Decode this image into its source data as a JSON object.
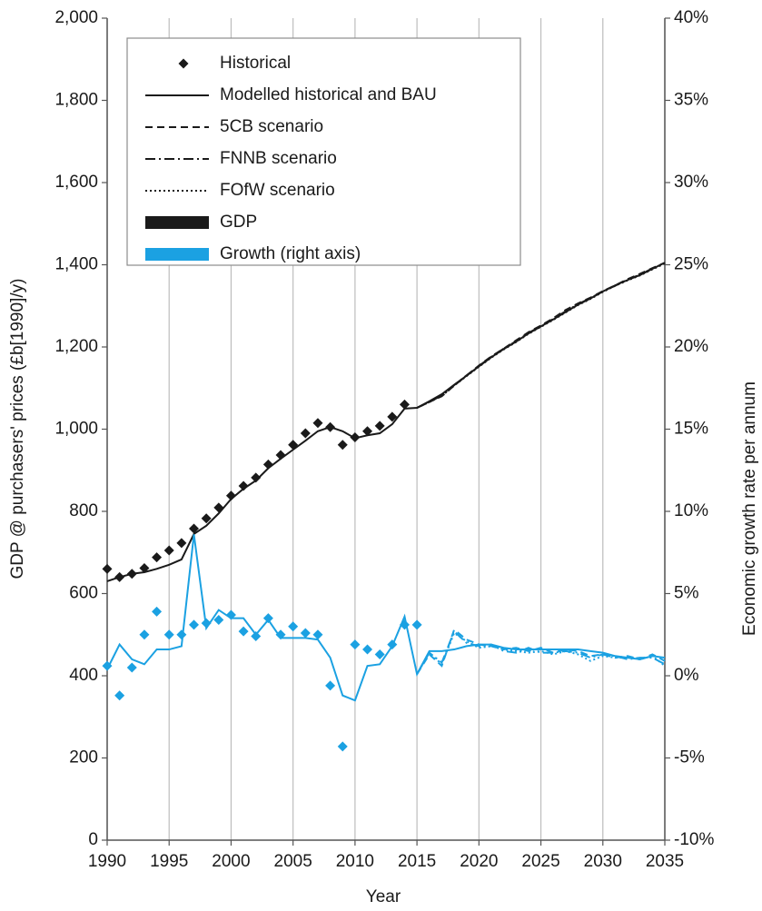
{
  "chart_data": {
    "type": "line",
    "y_label": "GDP @ purchasers' prices (£b[1990]/y)",
    "y2_label": "Economic growth rate per annum",
    "x_label": "Year",
    "x": [
      1990,
      1991,
      1992,
      1993,
      1994,
      1995,
      1996,
      1997,
      1998,
      1999,
      2000,
      2001,
      2002,
      2003,
      2004,
      2005,
      2006,
      2007,
      2008,
      2009,
      2010,
      2011,
      2012,
      2013,
      2014,
      2015,
      2016,
      2017,
      2018,
      2019,
      2020,
      2021,
      2022,
      2023,
      2024,
      2025,
      2026,
      2027,
      2028,
      2029,
      2030,
      2031,
      2032,
      2033,
      2034,
      2035
    ],
    "xlim": [
      1990,
      2035
    ],
    "xticks": [
      1990,
      1995,
      2000,
      2005,
      2010,
      2015,
      2020,
      2025,
      2030,
      2035
    ],
    "ylim": [
      0,
      2000
    ],
    "yticks": [
      0,
      200,
      400,
      600,
      800,
      {
        "value": 1000,
        "label": "1,000"
      },
      {
        "value": 1200,
        "label": "1,200"
      },
      {
        "value": 1400,
        "label": "1,400"
      },
      {
        "value": 1600,
        "label": "1,600"
      },
      {
        "value": 1800,
        "label": "1,800"
      },
      {
        "value": 2000,
        "label": "2,000"
      }
    ],
    "y2lim": [
      -10,
      40
    ],
    "y2ticks": [
      {
        "value": -10,
        "label": "-10%"
      },
      {
        "value": -5,
        "label": "-5%"
      },
      {
        "value": 0,
        "label": "0%"
      },
      {
        "value": 5,
        "label": "5%"
      },
      {
        "value": 10,
        "label": "10%"
      },
      {
        "value": 15,
        "label": "15%"
      },
      {
        "value": 20,
        "label": "20%"
      },
      {
        "value": 25,
        "label": "25%"
      },
      {
        "value": 30,
        "label": "30%"
      },
      {
        "value": 35,
        "label": "35%"
      },
      {
        "value": 40,
        "label": "40%"
      }
    ],
    "grid": "x",
    "legend": "upper left",
    "measures": [
      {
        "name": "GDP",
        "color": "#1a1a1a",
        "axis": "y"
      },
      {
        "name": "Growth (right axis)",
        "color": "#1ba1e2",
        "axis": "y2"
      }
    ],
    "series": [
      {
        "name": "Historical",
        "style": "diamond",
        "gdp": [
          660,
          640,
          648,
          662,
          688,
          705,
          723,
          758,
          783,
          809,
          838,
          862,
          882,
          914,
          937,
          962,
          990,
          1015,
          1005,
          962,
          980,
          995,
          1008,
          1030,
          1060,
          null,
          null,
          null,
          null,
          null,
          null,
          null,
          null,
          null,
          null,
          null,
          null,
          null,
          null,
          null,
          null,
          null,
          null,
          null,
          null,
          null
        ],
        "growth": [
          0.6,
          -1.2,
          0.5,
          2.5,
          3.9,
          2.5,
          2.5,
          3.1,
          3.2,
          3.4,
          3.7,
          2.7,
          2.4,
          3.5,
          2.5,
          3.0,
          2.6,
          2.5,
          -0.6,
          -4.3,
          1.9,
          1.6,
          1.3,
          1.9,
          3.1,
          3.1,
          null,
          null,
          null,
          null,
          null,
          null,
          null,
          null,
          null,
          null,
          null,
          null,
          null,
          null,
          null,
          null,
          null,
          null,
          null,
          null
        ]
      },
      {
        "name": "Modelled historical and BAU",
        "style": "solid",
        "gdp": [
          630,
          640,
          648,
          652,
          660,
          670,
          683,
          745,
          765,
          795,
          830,
          855,
          875,
          905,
          928,
          950,
          972,
          995,
          1005,
          995,
          978,
          985,
          990,
          1012,
          1050,
          1052,
          1068,
          1085,
          1108,
          1130,
          1153,
          1175,
          1195,
          1213,
          1233,
          1250,
          1267,
          1285,
          1303,
          1318,
          1335,
          1350,
          1363,
          1375,
          1390,
          1405
        ],
        "growth": [
          0.4,
          1.9,
          1.0,
          0.7,
          1.6,
          1.6,
          1.8,
          8.6,
          2.9,
          4.0,
          3.5,
          3.5,
          2.5,
          3.4,
          2.3,
          2.3,
          2.3,
          2.2,
          1.1,
          -1.2,
          -1.5,
          0.6,
          0.7,
          1.8,
          3.6,
          0.1,
          1.5,
          1.5,
          1.6,
          1.8,
          1.9,
          1.9,
          1.7,
          1.6,
          1.6,
          1.6,
          1.6,
          1.6,
          1.6,
          1.5,
          1.4,
          1.2,
          1.1,
          1.0,
          1.2,
          1.1
        ]
      },
      {
        "name": "5CB scenario",
        "style": "dashed",
        "gdp": [
          null,
          null,
          null,
          null,
          null,
          null,
          null,
          null,
          null,
          null,
          null,
          null,
          null,
          null,
          null,
          null,
          null,
          null,
          null,
          null,
          null,
          null,
          null,
          null,
          null,
          1052,
          1066,
          1080,
          1106,
          1130,
          1155,
          1177,
          1196,
          1216,
          1236,
          1252,
          1270,
          1290,
          1306,
          1320,
          1336,
          1350,
          1365,
          1378,
          1392,
          1405
        ],
        "growth": [
          null,
          null,
          null,
          null,
          null,
          null,
          null,
          null,
          null,
          null,
          null,
          null,
          null,
          null,
          null,
          null,
          null,
          null,
          null,
          null,
          null,
          null,
          null,
          null,
          null,
          0.1,
          1.3,
          0.6,
          2.8,
          2.2,
          1.9,
          1.8,
          1.6,
          1.7,
          1.5,
          1.7,
          1.4,
          1.6,
          1.5,
          1.2,
          1.3,
          1.1,
          1.2,
          1.0,
          1.3,
          0.9
        ]
      },
      {
        "name": "FNNB scenario",
        "style": "dashdot",
        "gdp": [
          null,
          null,
          null,
          null,
          null,
          null,
          null,
          null,
          null,
          null,
          null,
          null,
          null,
          null,
          null,
          null,
          null,
          null,
          null,
          null,
          null,
          null,
          null,
          null,
          null,
          1052,
          1066,
          1082,
          1107,
          1131,
          1154,
          1176,
          1196,
          1214,
          1234,
          1251,
          1268,
          1287,
          1304,
          1319,
          1335,
          1349,
          1364,
          1376,
          1391,
          1404
        ],
        "growth": [
          null,
          null,
          null,
          null,
          null,
          null,
          null,
          null,
          null,
          null,
          null,
          null,
          null,
          null,
          null,
          null,
          null,
          null,
          null,
          null,
          null,
          null,
          null,
          null,
          null,
          0.1,
          1.4,
          0.8,
          2.7,
          2.0,
          1.8,
          1.9,
          1.5,
          1.4,
          1.7,
          1.4,
          1.4,
          1.5,
          1.4,
          1.1,
          1.3,
          1.2,
          1.0,
          1.1,
          1.1,
          0.7
        ]
      },
      {
        "name": "FOfW scenario",
        "style": "dotted",
        "gdp": [
          null,
          null,
          null,
          null,
          null,
          null,
          null,
          null,
          null,
          null,
          null,
          null,
          null,
          null,
          null,
          null,
          null,
          null,
          null,
          null,
          null,
          null,
          null,
          null,
          null,
          1052,
          1066,
          1081,
          1106,
          1129,
          1152,
          1174,
          1194,
          1212,
          1232,
          1249,
          1266,
          1284,
          1302,
          1317,
          1334,
          1349,
          1362,
          1374,
          1389,
          1403
        ],
        "growth": [
          null,
          null,
          null,
          null,
          null,
          null,
          null,
          null,
          null,
          null,
          null,
          null,
          null,
          null,
          null,
          null,
          null,
          null,
          null,
          null,
          null,
          null,
          null,
          null,
          null,
          0.1,
          1.4,
          0.7,
          2.6,
          2.1,
          1.7,
          1.8,
          1.6,
          1.5,
          1.4,
          1.5,
          1.3,
          1.5,
          1.3,
          0.9,
          1.2,
          1.1,
          1.1,
          1.0,
          1.2,
          0.6
        ]
      }
    ]
  }
}
